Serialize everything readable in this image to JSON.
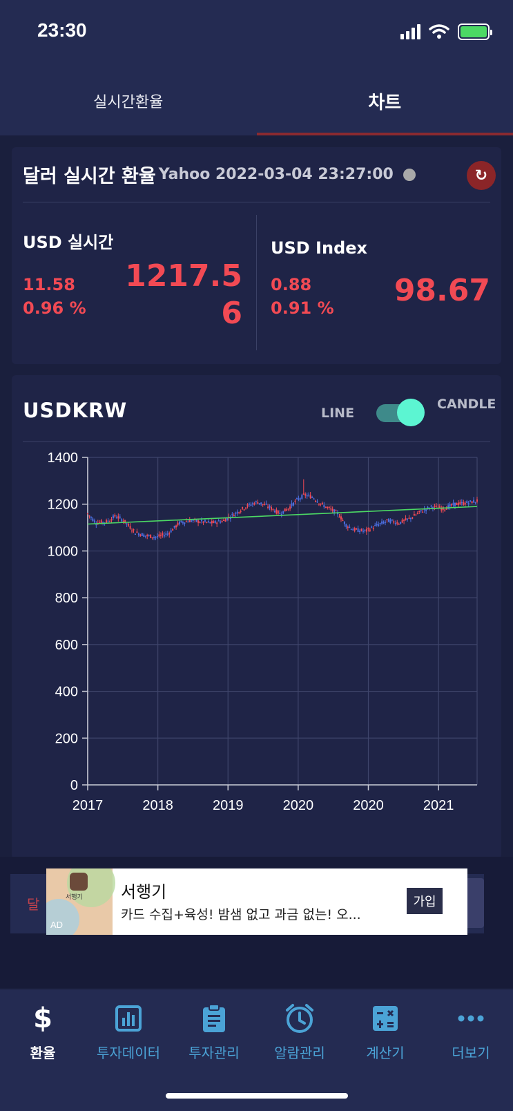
{
  "status_bar": {
    "time": "23:30"
  },
  "tabs": [
    {
      "label": "실시간환율",
      "active": false
    },
    {
      "label": "차트",
      "active": true
    }
  ],
  "rate_card": {
    "title": "달러 실시간 환율",
    "source": "Yahoo 2022-03-04 23:27:00",
    "usd_realtime": {
      "label": "USD 실시간",
      "change": "11.58",
      "change_pct": "0.96 %",
      "value_line1": "1217.5",
      "value_line2": "6"
    },
    "usd_index": {
      "label": "USD Index",
      "change": "0.88",
      "change_pct": "0.91 %",
      "value": "98.67"
    }
  },
  "chart_card": {
    "title": "USDKRW",
    "toggle_left": "LINE",
    "toggle_right": "CANDLE",
    "toggle_on": true
  },
  "chart_data": {
    "type": "candlestick",
    "ylim": [
      0,
      1400
    ],
    "yticks": [
      0,
      200,
      400,
      600,
      800,
      1000,
      1200,
      1400
    ],
    "xtick_labels": [
      "2017",
      "2018",
      "2019",
      "2020",
      "2020",
      "2021"
    ],
    "grid": true,
    "price_path": [
      [
        0.0,
        1160
      ],
      [
        0.03,
        1120
      ],
      [
        0.07,
        1125
      ],
      [
        0.1,
        1150
      ],
      [
        0.13,
        1130
      ],
      [
        0.17,
        1080
      ],
      [
        0.21,
        1065
      ],
      [
        0.25,
        1060
      ],
      [
        0.29,
        1075
      ],
      [
        0.33,
        1120
      ],
      [
        0.37,
        1130
      ],
      [
        0.41,
        1125
      ],
      [
        0.45,
        1120
      ],
      [
        0.49,
        1130
      ],
      [
        0.53,
        1160
      ],
      [
        0.57,
        1190
      ],
      [
        0.61,
        1210
      ],
      [
        0.65,
        1190
      ],
      [
        0.69,
        1160
      ],
      [
        0.72,
        1180
      ],
      [
        0.75,
        1215
      ],
      [
        0.78,
        1240
      ],
      [
        0.81,
        1230
      ],
      [
        0.84,
        1200
      ],
      [
        0.87,
        1180
      ],
      [
        0.9,
        1160
      ],
      [
        0.93,
        1110
      ],
      [
        0.96,
        1090
      ],
      [
        1.0,
        1085
      ],
      [
        1.04,
        1110
      ],
      [
        1.08,
        1130
      ],
      [
        1.12,
        1120
      ],
      [
        1.16,
        1140
      ],
      [
        1.2,
        1170
      ],
      [
        1.24,
        1190
      ],
      [
        1.28,
        1180
      ],
      [
        1.32,
        1200
      ],
      [
        1.36,
        1205
      ],
      [
        1.4,
        1215
      ]
    ],
    "trend_line": {
      "start": 1115,
      "end": 1190
    }
  },
  "ad": {
    "behind_text": "달",
    "badge": "AD",
    "app_name": "서행기",
    "title": "서행기",
    "description": "카드 수집+육성! 밤샘 없고 과금 없는! 오...",
    "cta": "가입"
  },
  "bottom_nav": [
    {
      "label": "환율",
      "icon": "dollar-icon",
      "active": true
    },
    {
      "label": "투자데이터",
      "icon": "bar-chart-icon",
      "active": false
    },
    {
      "label": "투자관리",
      "icon": "clipboard-icon",
      "active": false
    },
    {
      "label": "알람관리",
      "icon": "alarm-clock-icon",
      "active": false
    },
    {
      "label": "계산기",
      "icon": "calculator-icon",
      "active": false
    },
    {
      "label": "더보기",
      "icon": "more-icon",
      "active": false
    }
  ],
  "colors": {
    "up": "#f24a54",
    "down": "#4c6fe0",
    "trend": "#4cd964",
    "accent": "#8b2a30",
    "nav": "#4ba3d6"
  }
}
